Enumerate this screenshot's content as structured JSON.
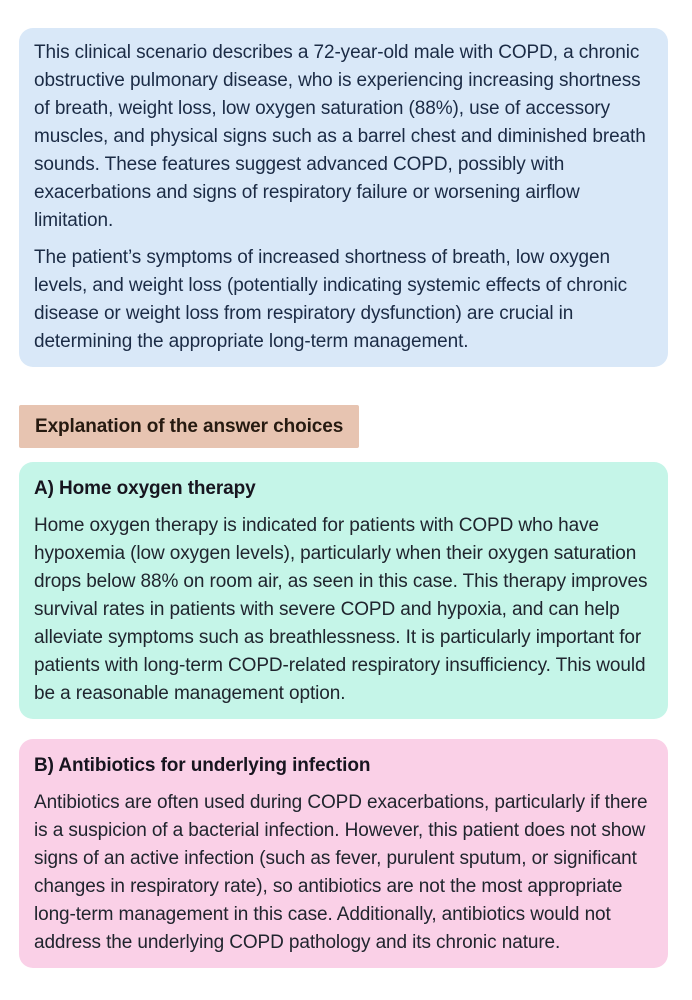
{
  "colors": {
    "page_background": "#ffffff",
    "scenario_box_bg": "#d9e8f8",
    "scenario_text": "#1b2b45",
    "section_header_bg": "#e7c4b1",
    "section_header_text": "#261a10",
    "option_a_bg": "#c5f5e8",
    "option_b_bg": "#fad0e7",
    "body_text": "#20252e",
    "heading_text": "#17151f"
  },
  "scenario": {
    "paragraphs": [
      "This clinical scenario describes a 72-year-old male with COPD, a chronic obstructive pulmonary disease, who is experiencing increasing shortness of breath, weight loss, low oxygen saturation (88%), use of accessory muscles, and physical signs such as a barrel chest and diminished breath sounds. These features suggest advanced COPD, possibly with exacerbations and signs of respiratory failure or worsening airflow limitation.",
      "The patient’s symptoms of increased shortness of breath, low oxygen levels, and weight loss (potentially indicating systemic effects of chronic disease or weight loss from respiratory dysfunction) are crucial in determining the appropriate long-term management."
    ]
  },
  "section_header": {
    "label": "Explanation of the answer choices"
  },
  "options": [
    {
      "id": "A",
      "heading": "A) Home oxygen therapy",
      "body": "Home oxygen therapy is indicated for patients with COPD who have hypoxemia (low oxygen levels), particularly when their oxygen saturation drops below 88% on room air, as seen in this case. This therapy improves survival rates in patients with severe COPD and hypoxia, and can help alleviate symptoms such as breathlessness. It is particularly important for patients with long-term COPD-related respiratory insufficiency. This would be a reasonable management option."
    },
    {
      "id": "B",
      "heading": "B) Antibiotics for underlying infection",
      "body": "Antibiotics are often used during COPD exacerbations, particularly if there is a suspicion of a bacterial infection. However, this patient does not show signs of an active infection (such as fever, purulent sputum, or significant changes in respiratory rate), so antibiotics are not the most appropriate long-term management in this case. Additionally, antibiotics would not address the underlying COPD pathology and its chronic nature."
    }
  ]
}
